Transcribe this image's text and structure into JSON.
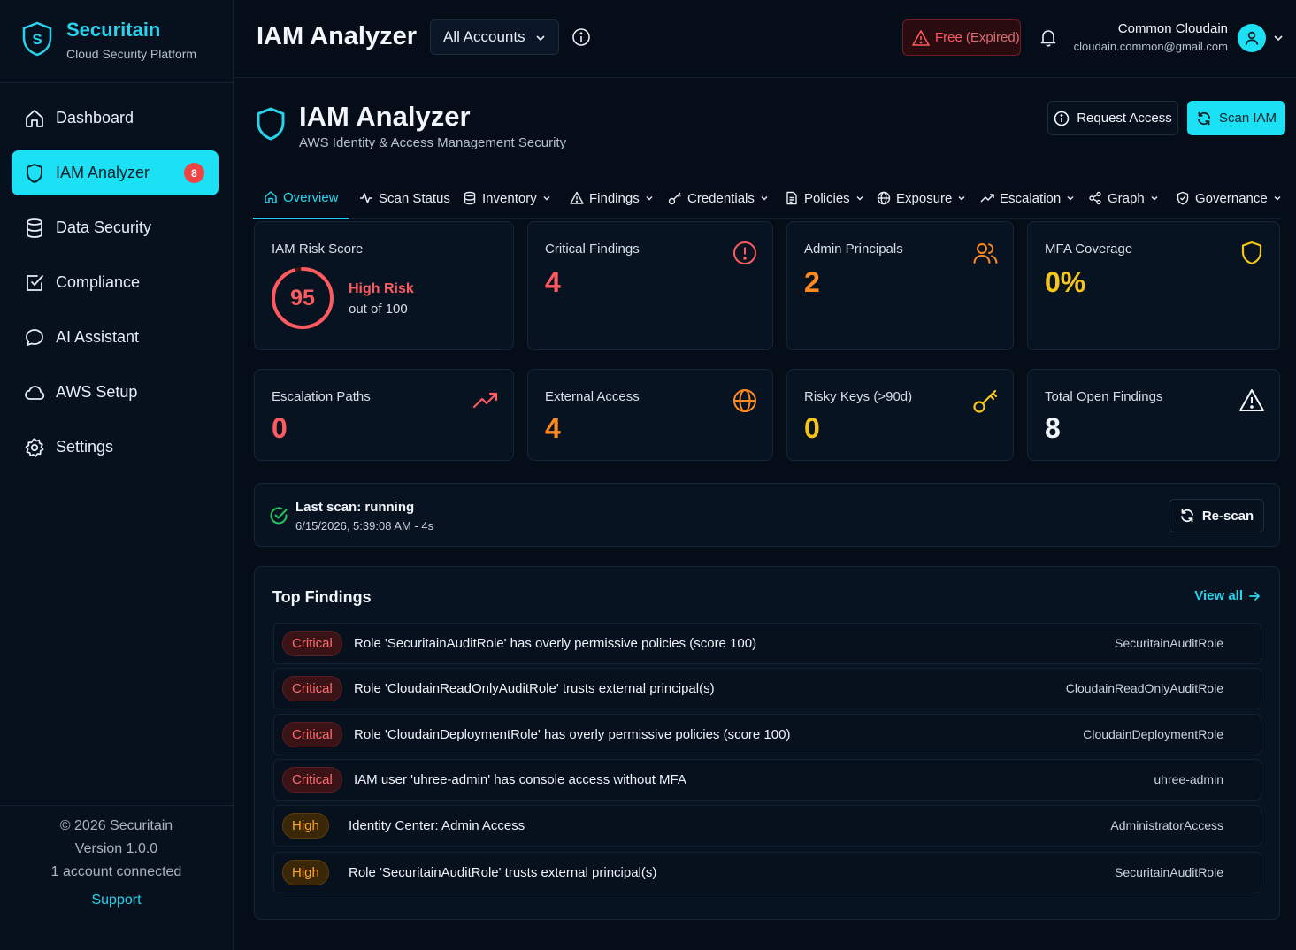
{
  "brand": {
    "name": "Securitain",
    "subtitle": "Cloud Security Platform"
  },
  "sidebar": {
    "items": [
      {
        "label": "Dashboard",
        "icon": "home-icon"
      },
      {
        "label": "IAM Analyzer",
        "icon": "shield-icon",
        "active": true,
        "badge": "8"
      },
      {
        "label": "Data Security",
        "icon": "database-icon"
      },
      {
        "label": "Compliance",
        "icon": "checkbox-icon"
      },
      {
        "label": "AI Assistant",
        "icon": "chat-icon"
      },
      {
        "label": "AWS Setup",
        "icon": "cloud-icon"
      },
      {
        "label": "Settings",
        "icon": "gear-icon"
      }
    ],
    "footer": {
      "copyright": "© 2026 Securitain",
      "version": "Version 1.0.0",
      "accounts": "1 account connected",
      "support": "Support"
    }
  },
  "header": {
    "title": "IAM Analyzer",
    "account_select": "All Accounts",
    "plan_label": "Free",
    "plan_status": "(Expired)",
    "user_name": "Common Cloudain",
    "user_email": "cloudain.common@gmail.com"
  },
  "page": {
    "title": "IAM Analyzer",
    "subtitle": "AWS Identity & Access Management Security",
    "request_access": "Request Access",
    "scan_iam": "Scan IAM"
  },
  "tabs": [
    {
      "label": "Overview",
      "icon": "home-icon",
      "active": true,
      "dropdown": false
    },
    {
      "label": "Scan Status",
      "icon": "activity-icon",
      "dropdown": false
    },
    {
      "label": "Inventory",
      "icon": "database-icon",
      "dropdown": true
    },
    {
      "label": "Findings",
      "icon": "warning-icon",
      "dropdown": true
    },
    {
      "label": "Credentials",
      "icon": "key-icon",
      "dropdown": true
    },
    {
      "label": "Policies",
      "icon": "document-icon",
      "dropdown": true
    },
    {
      "label": "Exposure",
      "icon": "globe-icon",
      "dropdown": true
    },
    {
      "label": "Escalation",
      "icon": "trend-up-icon",
      "dropdown": true
    },
    {
      "label": "Graph",
      "icon": "share-icon",
      "dropdown": true
    },
    {
      "label": "Governance",
      "icon": "shield-check-icon",
      "dropdown": true
    }
  ],
  "metrics": {
    "risk": {
      "label": "IAM Risk Score",
      "value": "95",
      "level": "High Risk",
      "out_of": "out of 100",
      "fraction": 0.95
    },
    "critical": {
      "label": "Critical Findings",
      "value": "4",
      "icon": "alert-circle-icon"
    },
    "admins": {
      "label": "Admin Principals",
      "value": "2",
      "icon": "users-icon"
    },
    "mfa": {
      "label": "MFA Coverage",
      "value": "0%",
      "icon": "shield-icon"
    },
    "escalation": {
      "label": "Escalation Paths",
      "value": "0",
      "icon": "trend-up-icon"
    },
    "external": {
      "label": "External Access",
      "value": "4",
      "icon": "globe-icon"
    },
    "keys": {
      "label": "Risky Keys (>90d)",
      "value": "0",
      "icon": "key-icon"
    },
    "total": {
      "label": "Total Open Findings",
      "value": "8",
      "icon": "warning-icon"
    }
  },
  "scan": {
    "title": "Last scan: running",
    "time": "6/15/2026, 5:39:08 AM - 4s",
    "rescan": "Re-scan"
  },
  "findings": {
    "title": "Top Findings",
    "view_all": "View all",
    "rows": [
      {
        "severity": "Critical",
        "text": "Role 'SecuritainAuditRole' has overly permissive policies (score 100)",
        "resource": "SecuritainAuditRole"
      },
      {
        "severity": "Critical",
        "text": "Role 'CloudainReadOnlyAuditRole' trusts external principal(s)",
        "resource": "CloudainReadOnlyAuditRole"
      },
      {
        "severity": "Critical",
        "text": "Role 'CloudainDeploymentRole' has overly permissive policies (score 100)",
        "resource": "CloudainDeploymentRole"
      },
      {
        "severity": "Critical",
        "text": "IAM user 'uhree-admin' has console access without MFA",
        "resource": "uhree-admin"
      },
      {
        "severity": "High",
        "text": "Identity Center: Admin Access",
        "resource": "AdministratorAccess"
      },
      {
        "severity": "High",
        "text": "Role 'SecuritainAuditRole' trusts external principal(s)",
        "resource": "SecuritainAuditRole"
      }
    ]
  },
  "colors": {
    "accent": "#1ce0f3",
    "critical": "#ff5a5f",
    "orange": "#ff8a1f",
    "yellow": "#f5c518",
    "success": "#22c55e"
  }
}
